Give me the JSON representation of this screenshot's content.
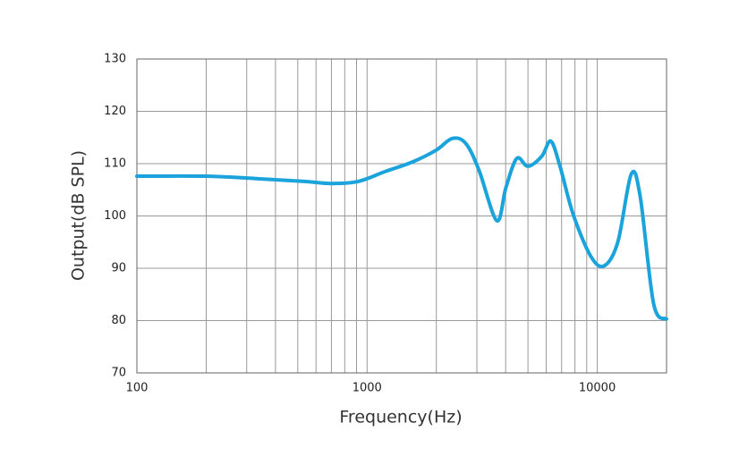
{
  "chart_data": {
    "type": "line",
    "x_label": "Frequency(Hz)",
    "y_label": "Output(dB SPL)",
    "x_scale": "log",
    "xlim": [
      100,
      20000
    ],
    "xticks": [
      100,
      1000,
      10000
    ],
    "x_minor_ticks": [
      200,
      300,
      400,
      500,
      600,
      700,
      800,
      900,
      2000,
      3000,
      4000,
      5000,
      6000,
      7000,
      8000,
      9000
    ],
    "ylim": [
      70,
      130
    ],
    "yticks": [
      70,
      80,
      90,
      100,
      110,
      120,
      130
    ],
    "grid": true,
    "series": [
      {
        "color": "#1ba3db",
        "x": [
          100,
          200,
          340,
          535,
          700,
          915,
          1200,
          1570,
          2000,
          2340,
          2680,
          3060,
          3660,
          4010,
          4470,
          5000,
          5740,
          6280,
          6870,
          7860,
          9400,
          10750,
          12300,
          14050,
          15370,
          17580,
          20000
        ],
        "values": [
          107.6,
          107.6,
          107.1,
          106.6,
          106.2,
          106.6,
          108.5,
          110.3,
          112.6,
          114.8,
          113.9,
          108.8,
          99.1,
          105.4,
          111.0,
          109.5,
          111.4,
          114.3,
          109.7,
          100.3,
          92.2,
          90.5,
          95.1,
          108.0,
          103.7,
          83.2,
          80.3
        ]
      }
    ]
  }
}
